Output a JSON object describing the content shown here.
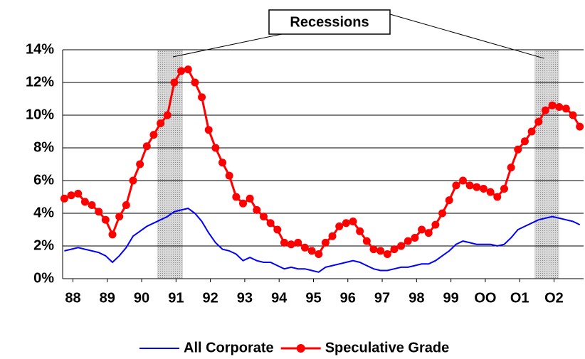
{
  "chart_data": {
    "type": "line",
    "annotation": "Recessions",
    "recessions": [
      [
        1990.45,
        1991.2
      ],
      [
        2001.43,
        2002.15
      ]
    ],
    "x": [
      1987.75,
      1987.95,
      1988.15,
      1988.35,
      1988.55,
      1988.75,
      1988.95,
      1989.15,
      1989.35,
      1989.55,
      1989.75,
      1989.95,
      1990.15,
      1990.35,
      1990.55,
      1990.75,
      1990.95,
      1991.15,
      1991.35,
      1991.55,
      1991.75,
      1991.95,
      1992.15,
      1992.35,
      1992.55,
      1992.75,
      1992.95,
      1993.15,
      1993.35,
      1993.55,
      1993.75,
      1993.95,
      1994.15,
      1994.35,
      1994.55,
      1994.75,
      1994.95,
      1995.15,
      1995.35,
      1995.55,
      1995.75,
      1995.95,
      1996.15,
      1996.35,
      1996.55,
      1996.75,
      1996.95,
      1997.15,
      1997.35,
      1997.55,
      1997.75,
      1997.95,
      1998.15,
      1998.35,
      1998.55,
      1998.75,
      1998.95,
      1999.15,
      1999.35,
      1999.55,
      1999.75,
      1999.95,
      2000.15,
      2000.35,
      2000.55,
      2000.75,
      2000.95,
      2001.15,
      2001.35,
      2001.55,
      2001.75,
      2001.95,
      2002.15,
      2002.35,
      2002.55,
      2002.75
    ],
    "series": [
      {
        "name": "All Corporate",
        "color": "#0000ff",
        "values": [
          1.7,
          1.8,
          1.9,
          1.8,
          1.7,
          1.6,
          1.4,
          1.0,
          1.4,
          1.9,
          2.6,
          2.9,
          3.2,
          3.4,
          3.6,
          3.8,
          4.1,
          4.2,
          4.3,
          4.0,
          3.5,
          2.8,
          2.2,
          1.8,
          1.7,
          1.5,
          1.1,
          1.3,
          1.1,
          1.0,
          1.0,
          0.8,
          0.6,
          0.7,
          0.6,
          0.6,
          0.5,
          0.4,
          0.7,
          0.8,
          0.9,
          1.0,
          1.1,
          1.0,
          0.8,
          0.6,
          0.5,
          0.5,
          0.6,
          0.7,
          0.7,
          0.8,
          0.9,
          0.9,
          1.1,
          1.4,
          1.7,
          2.1,
          2.3,
          2.2,
          2.1,
          2.1,
          2.1,
          2.0,
          2.1,
          2.5,
          3.0,
          3.2,
          3.4,
          3.6,
          3.7,
          3.8,
          3.7,
          3.6,
          3.5,
          3.3
        ]
      },
      {
        "name": "Speculative Grade",
        "color": "#ff0000",
        "marker": "circle",
        "values": [
          4.9,
          5.1,
          5.2,
          4.7,
          4.5,
          4.1,
          3.6,
          2.7,
          3.8,
          4.5,
          6.0,
          7.0,
          8.1,
          8.8,
          9.5,
          10.0,
          12.0,
          12.7,
          12.8,
          12.0,
          11.1,
          9.1,
          8.0,
          7.1,
          6.3,
          5.0,
          4.6,
          4.9,
          4.2,
          3.8,
          3.4,
          3.0,
          2.2,
          2.1,
          2.2,
          1.9,
          1.7,
          1.5,
          2.2,
          2.6,
          3.2,
          3.4,
          3.5,
          2.9,
          2.3,
          1.8,
          1.7,
          1.5,
          1.8,
          2.0,
          2.3,
          2.5,
          3.0,
          2.8,
          3.3,
          4.0,
          4.8,
          5.7,
          6.0,
          5.7,
          5.6,
          5.5,
          5.3,
          5.0,
          5.5,
          6.8,
          7.9,
          8.4,
          9.0,
          9.6,
          10.3,
          10.6,
          10.5,
          10.4,
          10.0,
          9.3
        ]
      }
    ],
    "xlim": [
      1987.7,
      2002.86
    ],
    "xticks": [
      {
        "value": 1988,
        "label": "88"
      },
      {
        "value": 1989,
        "label": "89"
      },
      {
        "value": 1990,
        "label": "90"
      },
      {
        "value": 1991,
        "label": "91"
      },
      {
        "value": 1992,
        "label": "92"
      },
      {
        "value": 1993,
        "label": "93"
      },
      {
        "value": 1994,
        "label": "94"
      },
      {
        "value": 1995,
        "label": "95"
      },
      {
        "value": 1996,
        "label": "96"
      },
      {
        "value": 1997,
        "label": "97"
      },
      {
        "value": 1998,
        "label": "98"
      },
      {
        "value": 1999,
        "label": "99"
      },
      {
        "value": 2000,
        "label": "OO"
      },
      {
        "value": 2001,
        "label": "O1"
      },
      {
        "value": 2002,
        "label": "O2"
      }
    ],
    "ylim": [
      0,
      14
    ],
    "yticks": [
      {
        "value": 0,
        "label": "0%"
      },
      {
        "value": 2,
        "label": "2%"
      },
      {
        "value": 4,
        "label": "4%"
      },
      {
        "value": 6,
        "label": "6%"
      },
      {
        "value": 8,
        "label": "8%"
      },
      {
        "value": 10,
        "label": "10%"
      },
      {
        "value": 12,
        "label": "12%"
      },
      {
        "value": 14,
        "label": "14%"
      }
    ],
    "grid": true,
    "legend": "bottom"
  }
}
